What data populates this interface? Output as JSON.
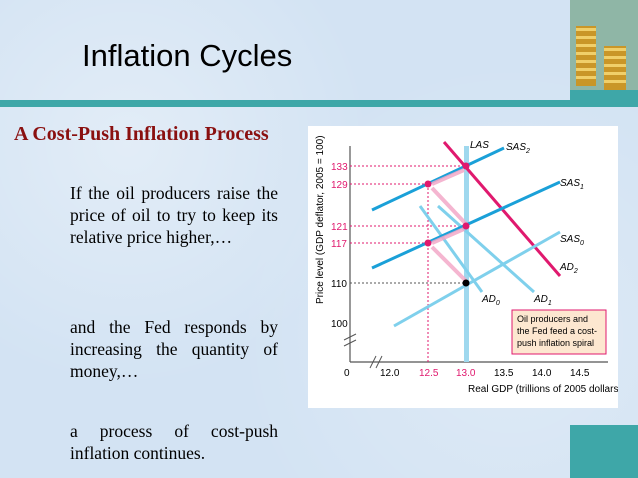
{
  "slide": {
    "title": "Inflation Cycles",
    "subtitle": "A Cost-Push Inflation Process",
    "paragraphs": [
      "If the oil producers raise the price of oil to try to keep its relative price higher,…",
      "and the Fed responds by increasing the quantity of money,…",
      "a process of cost-push inflation continues."
    ]
  },
  "diagram": {
    "y_axis_label": "Price level (GDP deflator, 2005 = 100)",
    "x_axis_label": "Real GDP (trillions of 2005 dollars)",
    "x_ticks": [
      "0",
      "12.0",
      "12.5",
      "13.0",
      "13.5",
      "14.0",
      "14.5"
    ],
    "y_ticks": [
      "100",
      "110",
      "117",
      "121",
      "129",
      "133"
    ],
    "curves": {
      "las": "LAS",
      "sas0": "SAS",
      "sas0_sub": "0",
      "sas1": "SAS",
      "sas1_sub": "1",
      "sas2": "SAS",
      "sas2_sub": "2",
      "ad0": "AD",
      "ad0_sub": "0",
      "ad1": "AD",
      "ad1_sub": "1",
      "ad2": "AD",
      "ad2_sub": "2"
    },
    "note": [
      "Oil producers and",
      "the Fed feed a cost-",
      "push inflation spiral"
    ],
    "colors": {
      "sas": "#1aa0d8",
      "ad_light": "#7fd0ec",
      "ad_red": "#e0196e",
      "highlight": "#e0196e",
      "las": "#9fd8ee"
    }
  }
}
